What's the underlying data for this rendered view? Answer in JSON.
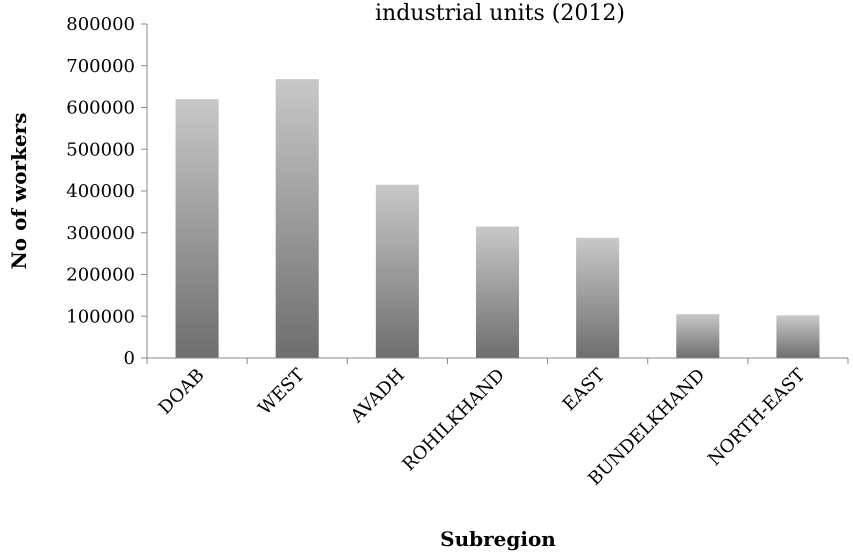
{
  "chart_data": {
    "type": "bar",
    "title": "industrial units (2012)",
    "xlabel": "Subregion",
    "ylabel": "No of workers",
    "categories": [
      "DOAB",
      "WEST",
      "AVADH",
      "ROHILKHAND",
      "EAST",
      "BUNDELKHAND",
      "NORTH-EAST"
    ],
    "values": [
      620000,
      668000,
      415000,
      315000,
      288000,
      105000,
      102000
    ],
    "ylim": [
      0,
      800000
    ],
    "yticks": [
      "0",
      "100000",
      "200000",
      "300000",
      "400000",
      "500000",
      "600000",
      "700000",
      "800000"
    ],
    "grid": false,
    "legend": false,
    "bar_gradient": [
      "#c8c8c8",
      "#6e6e6e"
    ]
  }
}
